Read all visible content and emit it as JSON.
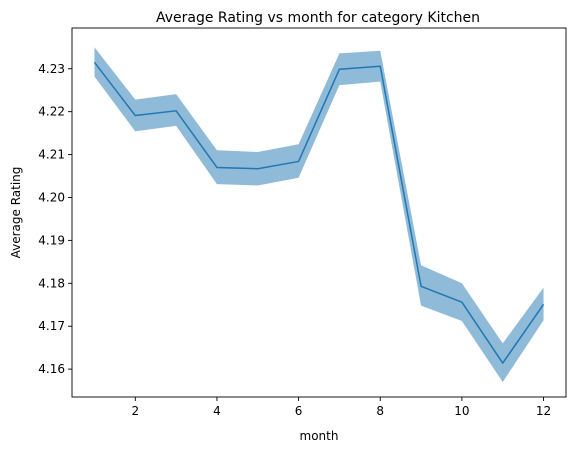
{
  "chart_data": {
    "type": "line",
    "title": "Average Rating vs month for category Kitchen",
    "xlabel": "month",
    "ylabel": "Average Rating",
    "xlim": [
      0.45,
      12.55
    ],
    "ylim": [
      4.1535,
      4.2395
    ],
    "x_ticks": [
      2,
      4,
      6,
      8,
      10,
      12
    ],
    "y_ticks": [
      4.16,
      4.17,
      4.18,
      4.19,
      4.2,
      4.21,
      4.22,
      4.23
    ],
    "grid": false,
    "legend": "none",
    "x": [
      1,
      2,
      3,
      4,
      5,
      6,
      7,
      8,
      9,
      10,
      11,
      12
    ],
    "series": [
      {
        "values": [
          4.2315,
          4.2191,
          4.2202,
          4.207,
          4.2067,
          4.2084,
          4.2299,
          4.2306,
          4.1793,
          4.1756,
          4.1614,
          4.1751
        ],
        "ci_lower": [
          4.2282,
          4.2154,
          4.2167,
          4.2031,
          4.2028,
          4.2046,
          4.2262,
          4.227,
          4.1748,
          4.1712,
          4.157,
          4.1714
        ],
        "ci_upper": [
          4.235,
          4.2228,
          4.2241,
          4.211,
          4.2106,
          4.2124,
          4.2336,
          4.2342,
          4.1842,
          4.18,
          4.166,
          4.179
        ],
        "color": "#1f77b4",
        "band_color": "#1f77b4",
        "band_opacity": 0.5
      }
    ]
  }
}
